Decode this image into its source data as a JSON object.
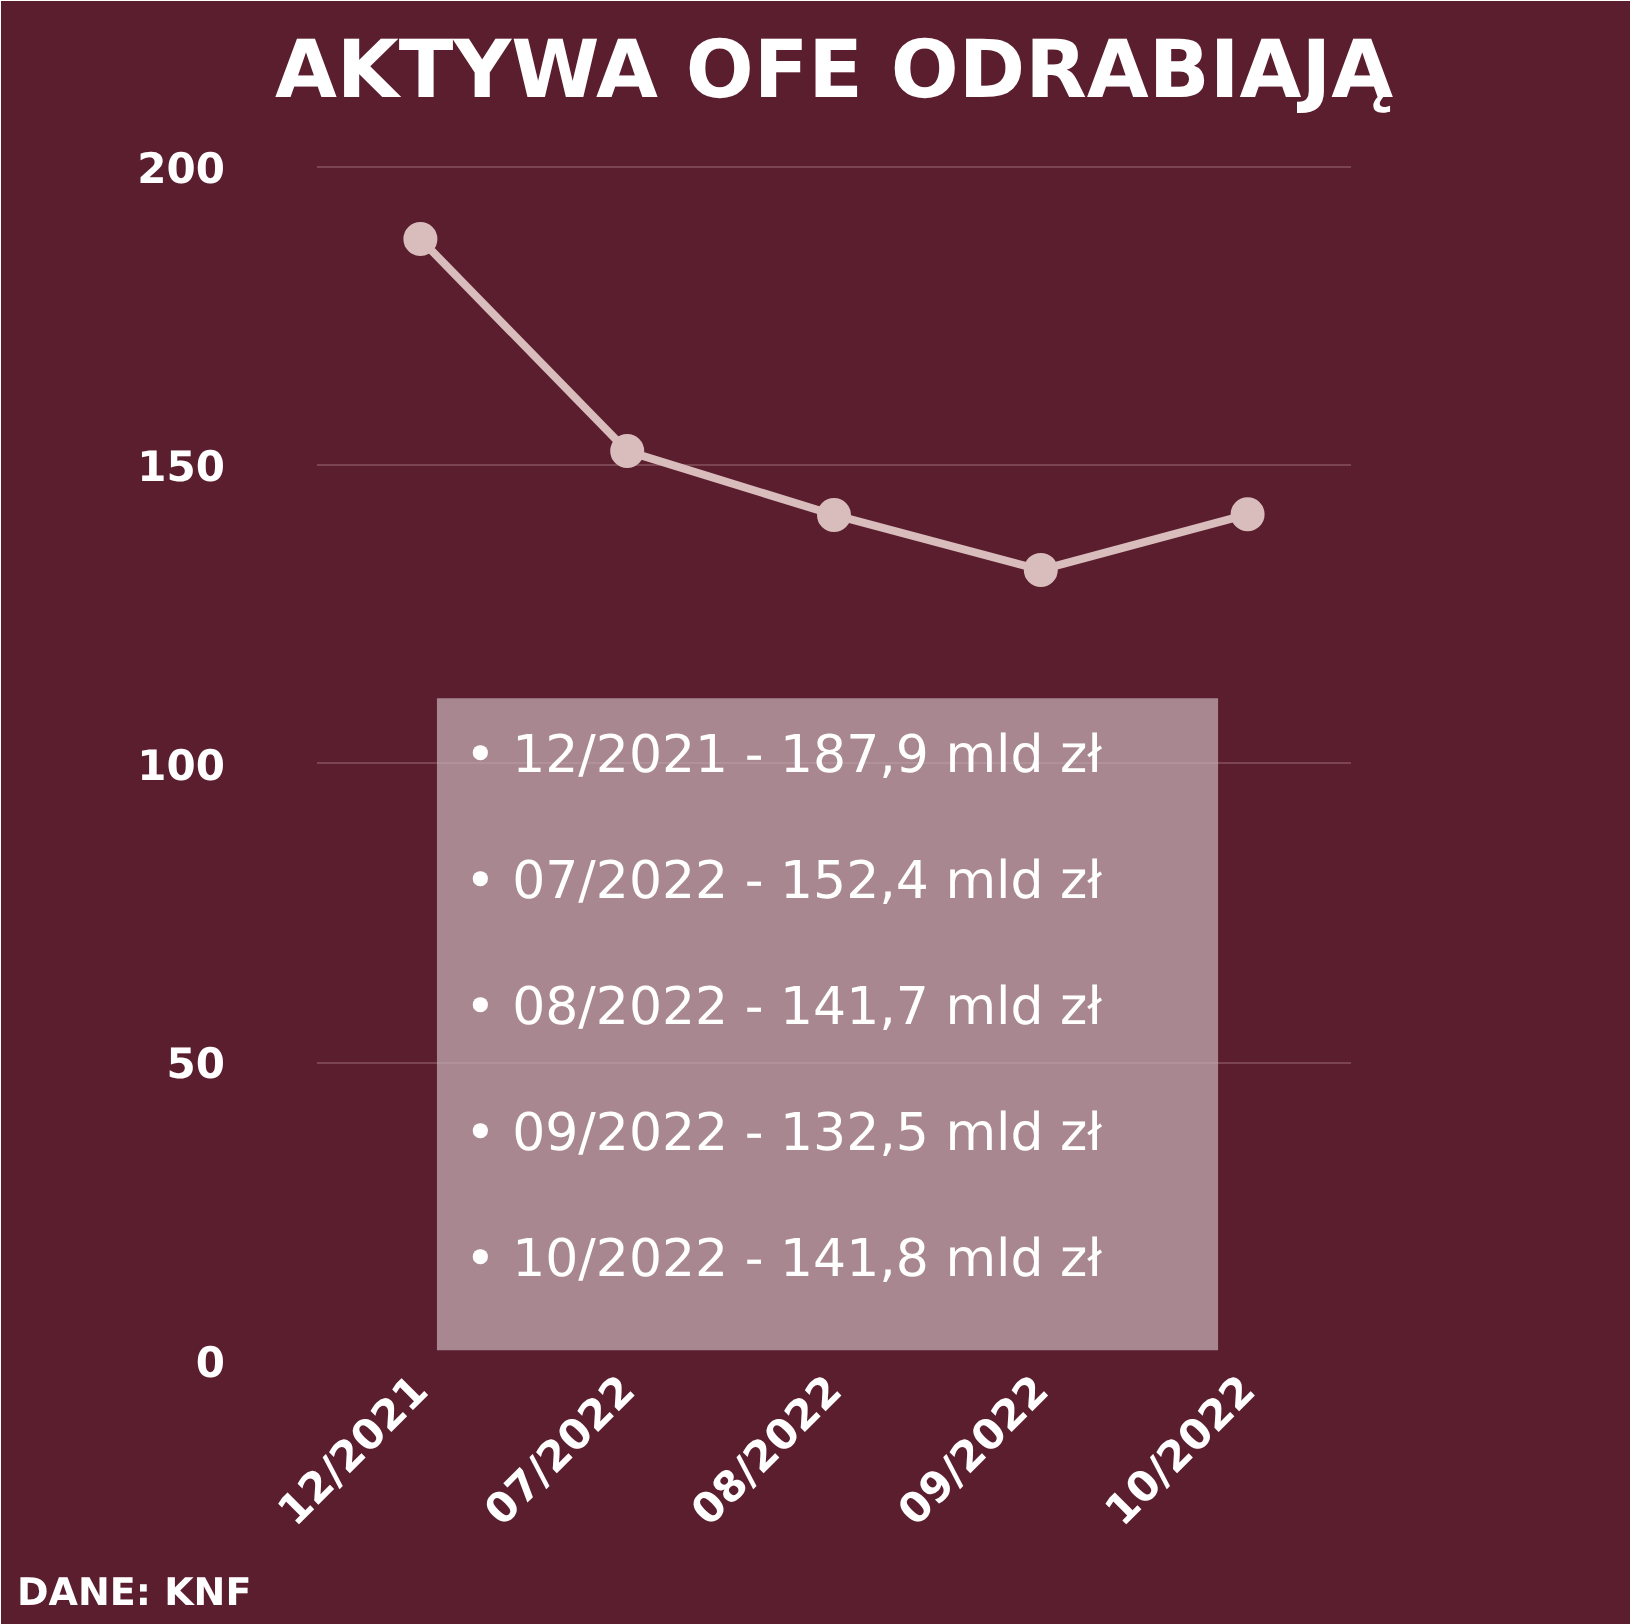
{
  "chart_data": {
    "type": "line",
    "title": "AKTYWA OFE ODRABIAJĄ",
    "categories": [
      "12/2021",
      "07/2022",
      "08/2022",
      "09/2022",
      "10/2022"
    ],
    "series": [
      {
        "color": "#d9bcbc",
        "values": [
          187.9,
          152.4,
          141.7,
          132.5,
          141.8
        ]
      }
    ],
    "ylim": [
      0,
      205
    ],
    "yticks": [
      0,
      50,
      100,
      150,
      200
    ],
    "grid": "y",
    "marker": "circle",
    "line_style": "solid",
    "annotations": [
      "• 12/2021 - 187,9 mld zł",
      "• 07/2022 - 152,4 mld zł",
      "• 08/2022 - 141,7 mld zł",
      "• 09/2022 - 132,5 mld zł",
      "• 10/2022 - 141,8 mld zł",
      "DANE: KNF"
    ]
  }
}
